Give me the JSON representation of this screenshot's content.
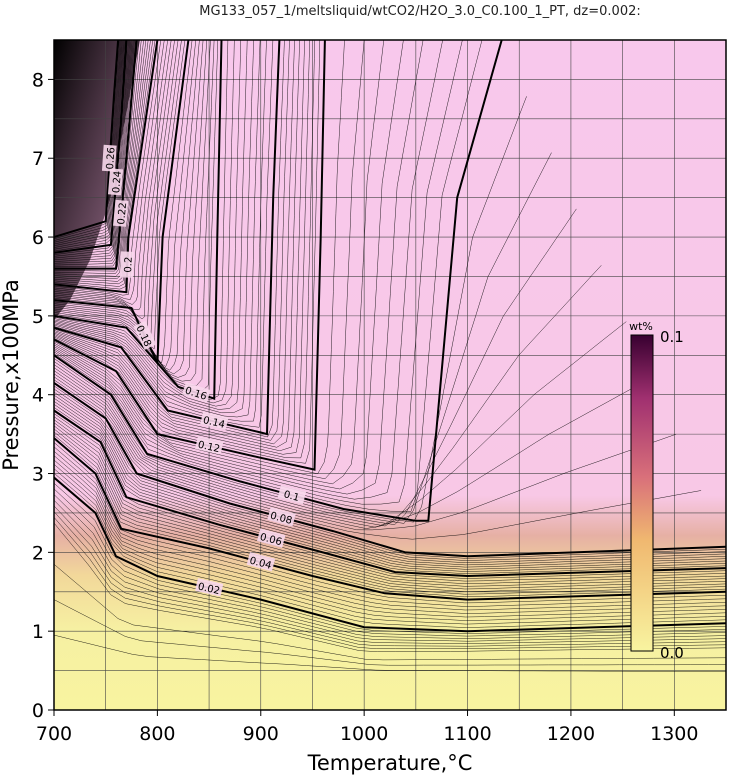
{
  "title": "MG133_057_1/meltsliquid/wtCO2/H2O_3.0_C0.100_1_PT, dz=0.002:",
  "chart_data": {
    "type": "heatmap",
    "title": "MG133_057_1/meltsliquid/wtCO2/H2O_3.0_C0.100_1_PT, dz=0.002:",
    "xlabel": "Temperature,°C",
    "ylabel": "Pressure,x100MPa",
    "xlim": [
      700,
      1350
    ],
    "ylim": [
      0,
      8.5
    ],
    "xticks": [
      "700",
      "800",
      "900",
      "1000",
      "1100",
      "1200",
      "1300"
    ],
    "yticks": [
      "0",
      "1",
      "2",
      "3",
      "4",
      "5",
      "6",
      "7",
      "8"
    ],
    "grid": true,
    "colorbar": {
      "label": "wt%",
      "min": 0.0,
      "max": 0.1,
      "min_label": "0.0",
      "max_label": "0.1",
      "colors": [
        "#f8f4a0",
        "#f0b870",
        "#d9707a",
        "#a03070",
        "#380030"
      ]
    },
    "contour_interval": 0.002,
    "high_temperature_contours": [
      {
        "level": 0.02,
        "label": "0.02",
        "points": [
          [
            700,
            2.95
          ],
          [
            740,
            2.5
          ],
          [
            760,
            1.95
          ],
          [
            800,
            1.7
          ],
          [
            900,
            1.4
          ],
          [
            1000,
            1.05
          ],
          [
            1100,
            1.0
          ],
          [
            1350,
            1.1
          ]
        ]
      },
      {
        "level": 0.04,
        "label": "0.04",
        "points": [
          [
            700,
            3.45
          ],
          [
            740,
            3.0
          ],
          [
            765,
            2.3
          ],
          [
            850,
            2.05
          ],
          [
            950,
            1.7
          ],
          [
            1020,
            1.48
          ],
          [
            1100,
            1.4
          ],
          [
            1350,
            1.5
          ]
        ]
      },
      {
        "level": 0.06,
        "label": "0.06",
        "points": [
          [
            700,
            3.8
          ],
          [
            745,
            3.4
          ],
          [
            770,
            2.7
          ],
          [
            860,
            2.35
          ],
          [
            960,
            2.0
          ],
          [
            1030,
            1.75
          ],
          [
            1100,
            1.7
          ],
          [
            1350,
            1.8
          ]
        ]
      },
      {
        "level": 0.08,
        "label": "0.08",
        "points": [
          [
            700,
            4.15
          ],
          [
            750,
            3.7
          ],
          [
            780,
            3.0
          ],
          [
            870,
            2.62
          ],
          [
            970,
            2.27
          ],
          [
            1040,
            2.0
          ],
          [
            1100,
            1.95
          ],
          [
            1350,
            2.07
          ]
        ]
      },
      {
        "level": 0.1,
        "label": "0.1",
        "points": [
          [
            700,
            4.5
          ],
          [
            755,
            4.0
          ],
          [
            790,
            3.25
          ],
          [
            880,
            2.9
          ],
          [
            980,
            2.55
          ],
          [
            1050,
            2.4
          ],
          [
            1062,
            2.4
          ],
          [
            1090,
            6.5
          ],
          [
            1133,
            8.5
          ]
        ]
      },
      {
        "level": 0.12,
        "label": "0.12",
        "points": [
          [
            700,
            4.7
          ],
          [
            760,
            4.3
          ],
          [
            800,
            3.5
          ],
          [
            900,
            3.2
          ],
          [
            952,
            3.05
          ],
          [
            958,
            6.0
          ],
          [
            962,
            8.5
          ]
        ]
      },
      {
        "level": 0.14,
        "label": "0.14",
        "points": [
          [
            700,
            4.85
          ],
          [
            765,
            4.6
          ],
          [
            810,
            3.8
          ],
          [
            900,
            3.52
          ],
          [
            906,
            3.5
          ],
          [
            912,
            6.5
          ],
          [
            918,
            8.5
          ]
        ]
      },
      {
        "level": 0.16,
        "label": "0.16",
        "points": [
          [
            700,
            5.0
          ],
          [
            770,
            4.85
          ],
          [
            820,
            4.1
          ],
          [
            855,
            3.95
          ],
          [
            858,
            6.0
          ],
          [
            862,
            8.5
          ]
        ]
      },
      {
        "level": 0.18,
        "label": "0.18",
        "points": [
          [
            700,
            5.2
          ],
          [
            775,
            5.1
          ],
          [
            800,
            4.4
          ],
          [
            805,
            6.0
          ],
          [
            830,
            8.5
          ]
        ]
      },
      {
        "level": 0.2,
        "label": "0.2",
        "points": [
          [
            700,
            5.4
          ],
          [
            770,
            5.3
          ],
          [
            772,
            6.0
          ],
          [
            800,
            8.5
          ]
        ]
      },
      {
        "level": 0.22,
        "label": "0.22",
        "points": [
          [
            700,
            5.6
          ],
          [
            760,
            5.6
          ],
          [
            770,
            7.0
          ],
          [
            780,
            8.5
          ]
        ]
      },
      {
        "level": 0.24,
        "label": "0.24",
        "points": [
          [
            700,
            5.8
          ],
          [
            755,
            5.9
          ],
          [
            765,
            7.5
          ],
          [
            770,
            8.5
          ]
        ]
      },
      {
        "level": 0.26,
        "label": "0.26",
        "points": [
          [
            700,
            6.0
          ],
          [
            750,
            6.2
          ],
          [
            758,
            7.8
          ],
          [
            762,
            8.5
          ]
        ]
      }
    ]
  }
}
